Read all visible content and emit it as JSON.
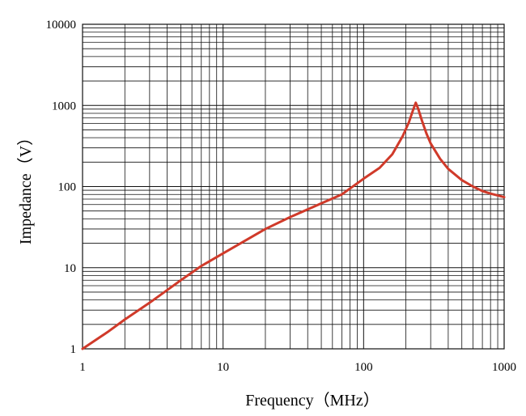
{
  "chart_data": {
    "type": "line",
    "title": "",
    "xlabel": "Frequency（MHz）",
    "ylabel": "Impedance（V）",
    "x_scale": "log",
    "y_scale": "log",
    "xlim": [
      1,
      1000
    ],
    "ylim": [
      1,
      10000
    ],
    "x_ticks": [
      "1",
      "10",
      "100",
      "1000"
    ],
    "y_ticks": [
      "1",
      "10",
      "100",
      "1000",
      "10000"
    ],
    "grid": true,
    "legend": "none",
    "series": [
      {
        "color": "#d03a2a",
        "x": [
          1,
          1.5,
          2,
          3,
          5,
          7,
          10,
          15,
          20,
          30,
          50,
          70,
          100,
          130,
          160,
          190,
          210,
          225,
          235,
          245,
          260,
          280,
          300,
          350,
          400,
          500,
          600,
          700,
          800,
          1000
        ],
        "y": [
          1,
          1.6,
          2.3,
          3.7,
          7,
          10.5,
          15,
          22.5,
          30,
          42,
          62,
          80,
          125,
          170,
          250,
          420,
          620,
          880,
          1080,
          900,
          650,
          450,
          340,
          220,
          165,
          120,
          100,
          88,
          82,
          74
        ]
      }
    ]
  }
}
